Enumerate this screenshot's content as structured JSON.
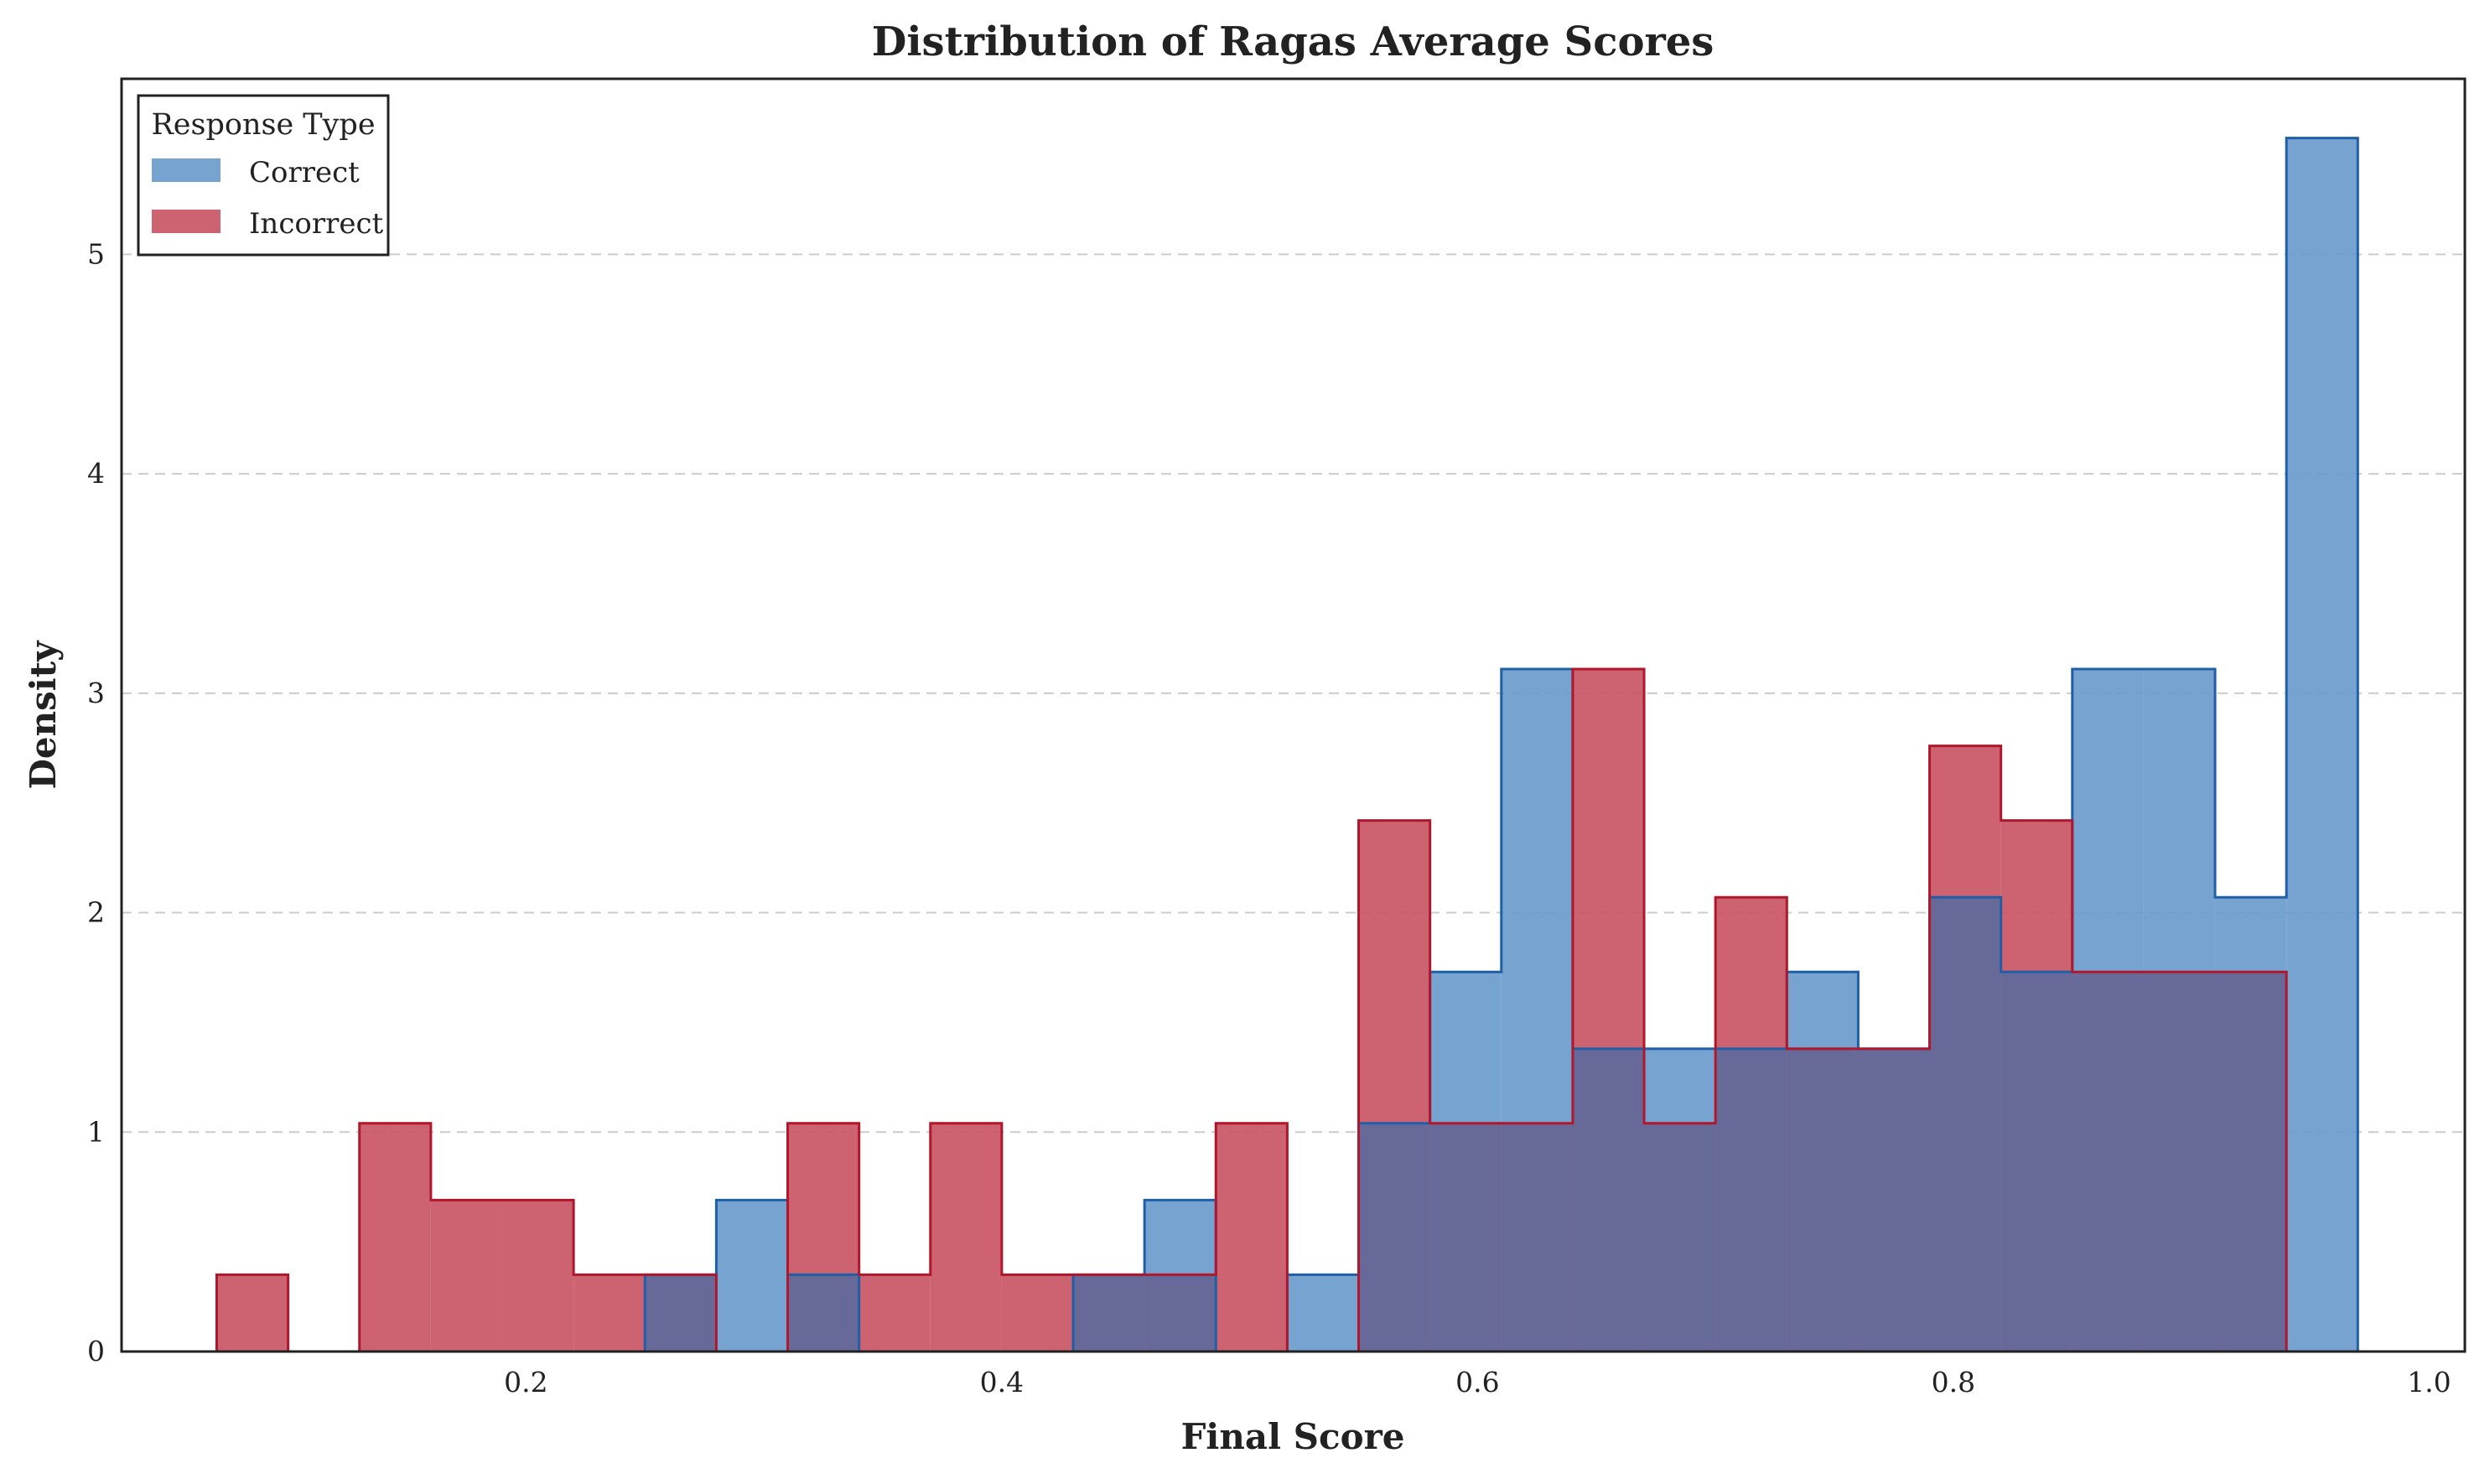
{
  "chart_data": {
    "type": "histogram",
    "title": "Distribution of Ragas Average Scores",
    "xlabel": "Final Score",
    "ylabel": "Density",
    "xlim": [
      0.03,
      1.015
    ],
    "ylim": [
      0,
      5.8
    ],
    "xticks": [
      0.2,
      0.4,
      0.6,
      0.8,
      1.0
    ],
    "xtick_labels": [
      "0.2",
      "0.4",
      "0.6",
      "0.8",
      "1.0"
    ],
    "yticks": [
      0,
      1,
      2,
      3,
      4,
      5
    ],
    "ytick_labels": [
      "0",
      "1",
      "2",
      "3",
      "4",
      "5"
    ],
    "grid": {
      "axis": "y",
      "style": "dashed",
      "color": "#cccccc"
    },
    "legend": {
      "title": "Response Type",
      "placement": "top-left"
    },
    "bin_edges": [
      0.07,
      0.1,
      0.13,
      0.16,
      0.19,
      0.22,
      0.25,
      0.28,
      0.31,
      0.34,
      0.37,
      0.4,
      0.43,
      0.46,
      0.49,
      0.52,
      0.55,
      0.58,
      0.61,
      0.64,
      0.67,
      0.7,
      0.73,
      0.76,
      0.79,
      0.82,
      0.85,
      0.88,
      0.91,
      0.94,
      0.97
    ],
    "series": [
      {
        "name": "Correct",
        "fill": "#6b9bcc",
        "edge": "#1f5fa8",
        "values": [
          0,
          0,
          0,
          0,
          0,
          0,
          0.35,
          0.69,
          0.35,
          0,
          0,
          0,
          0.35,
          0.69,
          0,
          0.35,
          1.04,
          1.73,
          3.11,
          1.38,
          1.38,
          1.38,
          1.73,
          1.38,
          2.07,
          1.73,
          3.11,
          3.11,
          2.07,
          5.53
        ]
      },
      {
        "name": "Incorrect",
        "fill": "#c95565",
        "edge": "#b0172b",
        "values": [
          0.35,
          0,
          1.04,
          0.69,
          0.69,
          0.35,
          0.35,
          0,
          1.04,
          0.35,
          1.04,
          0.35,
          0.35,
          0.35,
          1.04,
          0,
          2.42,
          1.04,
          1.04,
          3.11,
          1.04,
          2.07,
          1.38,
          1.38,
          2.76,
          2.42,
          1.73,
          1.73,
          1.73,
          0
        ]
      }
    ]
  }
}
